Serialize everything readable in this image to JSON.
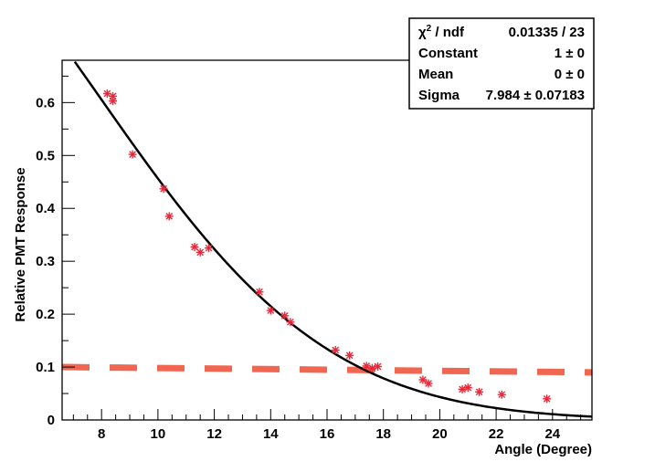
{
  "chart_data": {
    "type": "scatter",
    "title": "",
    "xlabel": "Angle (Degree)",
    "ylabel": "Relative PMT Response",
    "xlim": [
      6.6,
      25.4
    ],
    "ylim": [
      0,
      0.68
    ],
    "x_ticks": [
      8,
      10,
      12,
      14,
      16,
      18,
      20,
      22,
      24
    ],
    "y_ticks": [
      0,
      0.1,
      0.2,
      0.3,
      0.4,
      0.5,
      0.6
    ],
    "x_tick_labels": [
      "8",
      "10",
      "12",
      "14",
      "16",
      "18",
      "20",
      "22",
      "24"
    ],
    "y_tick_labels": [
      "0",
      "0.1",
      "0.2",
      "0.3",
      "0.4",
      "0.5",
      "0.6"
    ],
    "series": [
      {
        "name": "data",
        "marker": "asterisk",
        "color": "#e8283a",
        "points": [
          [
            8.2,
            0.617
          ],
          [
            8.4,
            0.612
          ],
          [
            8.4,
            0.603
          ],
          [
            9.1,
            0.502
          ],
          [
            10.2,
            0.437
          ],
          [
            10.4,
            0.385
          ],
          [
            11.3,
            0.327
          ],
          [
            11.5,
            0.317
          ],
          [
            11.8,
            0.325
          ],
          [
            13.6,
            0.242
          ],
          [
            14.0,
            0.207
          ],
          [
            14.5,
            0.197
          ],
          [
            14.7,
            0.185
          ],
          [
            16.3,
            0.132
          ],
          [
            16.8,
            0.122
          ],
          [
            17.4,
            0.102
          ],
          [
            17.6,
            0.098
          ],
          [
            17.8,
            0.101
          ],
          [
            19.4,
            0.076
          ],
          [
            19.6,
            0.069
          ],
          [
            20.8,
            0.058
          ],
          [
            21.0,
            0.061
          ],
          [
            21.4,
            0.053
          ],
          [
            22.2,
            0.048
          ],
          [
            23.8,
            0.04
          ]
        ]
      }
    ],
    "fit": {
      "name": "gaus",
      "color": "#000000",
      "constant": 1,
      "mean": 0,
      "sigma": 7.984
    },
    "threshold_line": {
      "color": "#f06651",
      "style": "dashed",
      "y_start": 0.1,
      "y_end": 0.09
    },
    "stats_box": {
      "rows": [
        {
          "label_main": "χ",
          "label_sup": "2",
          "label_rest": " / ndf",
          "value": "0.01335 / 23"
        },
        {
          "label_main": "Constant",
          "label_sup": "",
          "label_rest": "",
          "value": "1 ±     0"
        },
        {
          "label_main": "Mean",
          "label_sup": "",
          "label_rest": "",
          "value": "0 ±     0"
        },
        {
          "label_main": "Sigma",
          "label_sup": "",
          "label_rest": "",
          "value": "7.984 ± 0.07183"
        }
      ]
    }
  }
}
